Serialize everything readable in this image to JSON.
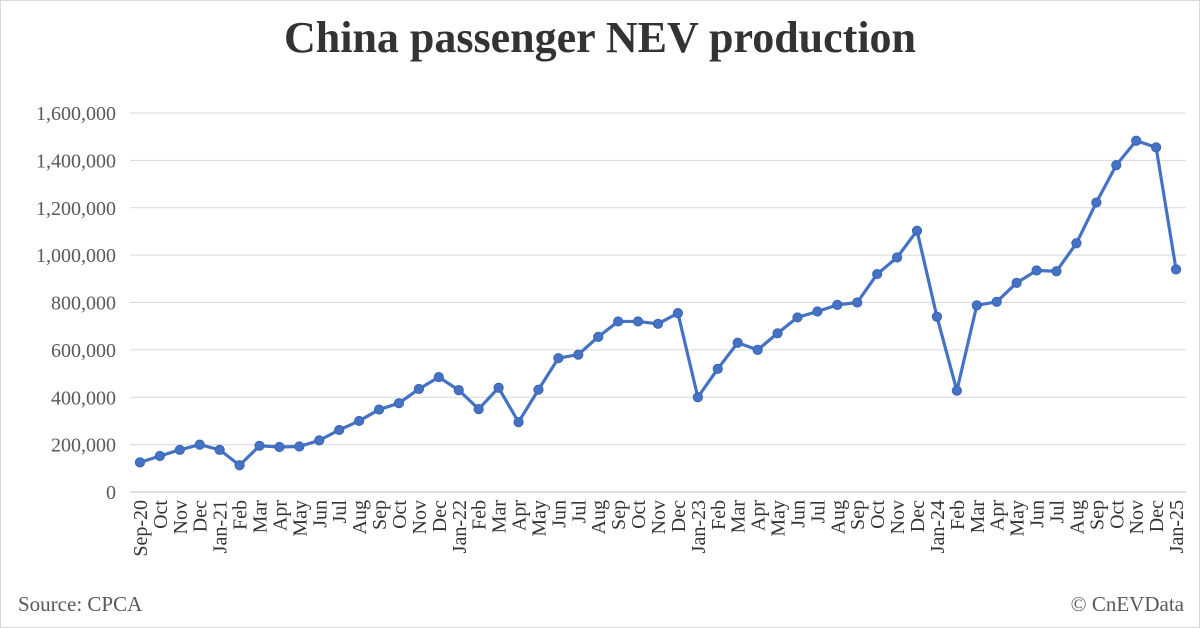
{
  "title": "China passenger NEV production",
  "source": "Source: CPCA",
  "credit": "© CnEVData",
  "colors": {
    "line": "#4472c4",
    "grid": "#d9d9d9",
    "axis_text": "#595959"
  },
  "chart_data": {
    "type": "line",
    "title": "China passenger NEV production",
    "xlabel": "",
    "ylabel": "",
    "ylim": [
      0,
      1600000
    ],
    "yticks": [
      0,
      200000,
      400000,
      600000,
      800000,
      1000000,
      1200000,
      1400000,
      1600000
    ],
    "ytick_labels": [
      "0",
      "200,000",
      "400,000",
      "600,000",
      "800,000",
      "1,000,000",
      "1,200,000",
      "1,400,000",
      "1,600,000"
    ],
    "grid": true,
    "legend": "none",
    "categories": [
      "Sep-20",
      "Oct",
      "Nov",
      "Dec",
      "Jan-21",
      "Feb",
      "Mar",
      "Apr",
      "May",
      "Jun",
      "Jul",
      "Aug",
      "Sep",
      "Oct",
      "Nov",
      "Dec",
      "Jan-22",
      "Feb",
      "Mar",
      "Apr",
      "May",
      "Jun",
      "Jul",
      "Aug",
      "Sep",
      "Oct",
      "Nov",
      "Dec",
      "Jan-23",
      "Feb",
      "Mar",
      "Apr",
      "May",
      "Jun",
      "Jul",
      "Aug",
      "Sep",
      "Oct",
      "Nov",
      "Dec",
      "Jan-24",
      "Feb",
      "Mar",
      "Apr",
      "May",
      "Jun",
      "Jul",
      "Aug",
      "Sep",
      "Oct",
      "Nov",
      "Dec",
      "Jan-25"
    ],
    "series": [
      {
        "name": "Production",
        "values": [
          125000,
          152000,
          178000,
          200000,
          178000,
          113000,
          195000,
          190000,
          192000,
          218000,
          262000,
          300000,
          348000,
          375000,
          435000,
          485000,
          430000,
          350000,
          440000,
          295000,
          432000,
          565000,
          580000,
          655000,
          720000,
          720000,
          710000,
          755000,
          400000,
          520000,
          630000,
          600000,
          670000,
          737000,
          762000,
          790000,
          800000,
          920000,
          990000,
          1103000,
          740000,
          428000,
          788000,
          803000,
          883000,
          935000,
          932000,
          1050000,
          1222000,
          1380000,
          1483000,
          1455000,
          940000
        ]
      }
    ]
  }
}
